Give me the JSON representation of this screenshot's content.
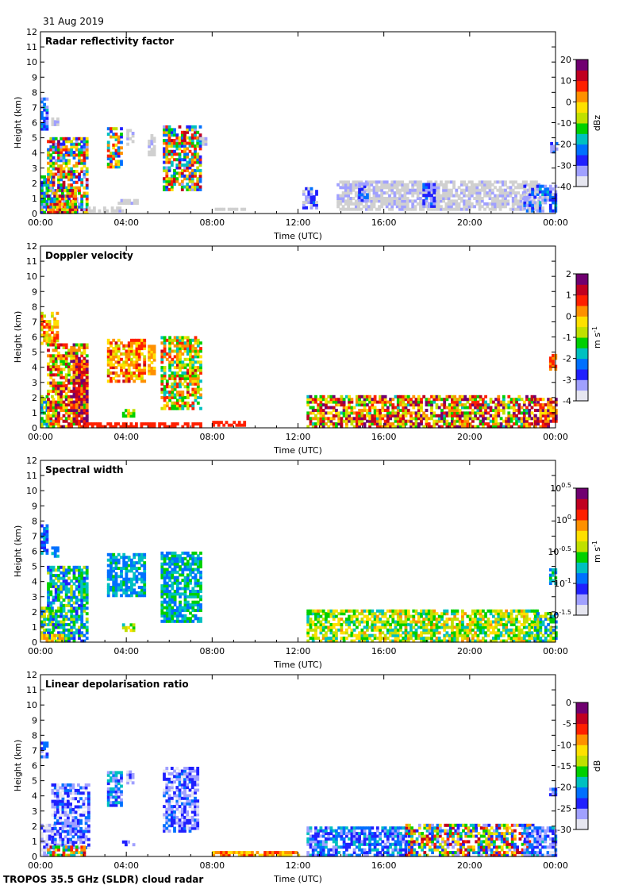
{
  "header": {
    "date": "31 Aug 2019"
  },
  "footer": {
    "instrument": "TROPOS 35.5 GHz (SLDR) cloud radar"
  },
  "colors": {
    "colormap": [
      "#e6e6f0",
      "#a0a0ff",
      "#2020ff",
      "#0070ff",
      "#00c0c0",
      "#00d000",
      "#c0e000",
      "#ffe000",
      "#ff9000",
      "#ff2000",
      "#c00020",
      "#700070"
    ],
    "gray_echo": "#d0d0d0",
    "axis": "#000000"
  },
  "chart_data": [
    {
      "type": "heatmap",
      "title": "Radar reflectivity factor",
      "xlabel": "Time (UTC)",
      "ylabel": "Height (km)",
      "x_ticks": [
        "00:00",
        "04:00",
        "08:00",
        "12:00",
        "16:00",
        "20:00",
        "00:00"
      ],
      "y_ticks": [
        "0",
        "1",
        "2",
        "3",
        "4",
        "5",
        "6",
        "7",
        "8",
        "9",
        "10",
        "11",
        "12"
      ],
      "ylim": [
        0,
        12
      ],
      "xlim_hours": [
        0,
        24
      ],
      "colorbar": {
        "label": "dBz",
        "ticks": [
          "20",
          "10",
          "0",
          "-10",
          "-20",
          "-30",
          "-40"
        ]
      },
      "regions": [
        {
          "t": [
            0.0,
            0.3
          ],
          "h": [
            5.5,
            7.6
          ],
          "c": [
            0.1,
            0.35
          ]
        },
        {
          "t": [
            0.5,
            0.8
          ],
          "h": [
            5.8,
            6.3
          ],
          "c": [
            0.0,
            0.15
          ]
        },
        {
          "t": [
            0.0,
            0.5
          ],
          "h": [
            0.0,
            2.5
          ],
          "c": [
            0.15,
            0.55
          ]
        },
        {
          "t": [
            0.3,
            2.2
          ],
          "h": [
            0.0,
            5.0
          ],
          "c": [
            0.1,
            0.95
          ]
        },
        {
          "t": [
            0.6,
            1.6
          ],
          "h": [
            0.0,
            1.5
          ],
          "c": [
            0.4,
            1.0
          ]
        },
        {
          "t": [
            3.1,
            3.8
          ],
          "h": [
            3.0,
            5.6
          ],
          "c": [
            0.2,
            0.85
          ]
        },
        {
          "t": [
            4.0,
            4.3
          ],
          "h": [
            4.5,
            5.5
          ],
          "c": [
            0.0,
            0.12
          ]
        },
        {
          "t": [
            5.0,
            5.3
          ],
          "h": [
            3.8,
            5.2
          ],
          "c": [
            0.0,
            0.1
          ]
        },
        {
          "t": [
            5.7,
            7.4
          ],
          "h": [
            1.5,
            5.8
          ],
          "c": [
            0.15,
            0.9
          ]
        },
        {
          "t": [
            7.4,
            7.7
          ],
          "h": [
            4.5,
            5.0
          ],
          "c": [
            0.0,
            0.12
          ]
        },
        {
          "t": [
            3.6,
            4.5
          ],
          "h": [
            0.6,
            0.9
          ],
          "c": [
            0.0,
            0.12
          ]
        },
        {
          "t": [
            2.2,
            3.8
          ],
          "h": [
            0.1,
            0.3
          ],
          "c": [
            0.0,
            0.1
          ]
        },
        {
          "t": [
            8.0,
            9.5
          ],
          "h": [
            0.2,
            0.35
          ],
          "c": [
            0.0,
            0.08
          ]
        },
        {
          "t": [
            12.2,
            12.8
          ],
          "h": [
            0.3,
            1.6
          ],
          "c": [
            0.0,
            0.3
          ]
        },
        {
          "t": [
            13.8,
            23.2
          ],
          "h": [
            0.2,
            2.1
          ],
          "c": [
            0.0,
            0.12
          ]
        },
        {
          "t": [
            14.8,
            15.2
          ],
          "h": [
            0.8,
            1.9
          ],
          "c": [
            0.1,
            0.3
          ]
        },
        {
          "t": [
            17.8,
            18.3
          ],
          "h": [
            0.4,
            2.0
          ],
          "c": [
            0.1,
            0.3
          ]
        },
        {
          "t": [
            22.5,
            24.0
          ],
          "h": [
            0.1,
            1.8
          ],
          "c": [
            0.05,
            0.35
          ]
        },
        {
          "t": [
            23.75,
            24.0
          ],
          "h": [
            4.0,
            4.6
          ],
          "c": [
            0.1,
            0.3
          ]
        }
      ]
    },
    {
      "type": "heatmap",
      "title": "Doppler velocity",
      "xlabel": "Time (UTC)",
      "ylabel": "Height (km)",
      "x_ticks": [
        "00:00",
        "04:00",
        "08:00",
        "12:00",
        "16:00",
        "20:00",
        "00:00"
      ],
      "y_ticks": [
        "0",
        "1",
        "2",
        "3",
        "4",
        "5",
        "6",
        "7",
        "8",
        "9",
        "10",
        "11",
        "12"
      ],
      "ylim": [
        0,
        12
      ],
      "xlim_hours": [
        0,
        24
      ],
      "colorbar": {
        "label": "m s-1",
        "ticks": [
          "2",
          "1",
          "0",
          "-1",
          "-2",
          "-3",
          "-4"
        ]
      },
      "regions": [
        {
          "t": [
            0.0,
            0.8
          ],
          "h": [
            5.5,
            7.5
          ],
          "c": [
            0.55,
            0.8
          ]
        },
        {
          "t": [
            0.0,
            0.5
          ],
          "h": [
            0.0,
            2.0
          ],
          "c": [
            0.3,
            0.6
          ]
        },
        {
          "t": [
            0.3,
            2.2
          ],
          "h": [
            0.0,
            5.5
          ],
          "c": [
            0.45,
            0.95
          ]
        },
        {
          "t": [
            1.5,
            2.2
          ],
          "h": [
            0.0,
            4.5
          ],
          "c": [
            0.7,
            1.0
          ]
        },
        {
          "t": [
            3.1,
            4.8
          ],
          "h": [
            3.0,
            5.8
          ],
          "c": [
            0.55,
            0.85
          ]
        },
        {
          "t": [
            5.0,
            5.3
          ],
          "h": [
            3.5,
            5.3
          ],
          "c": [
            0.6,
            0.75
          ]
        },
        {
          "t": [
            5.6,
            7.5
          ],
          "h": [
            1.2,
            5.9
          ],
          "c": [
            0.35,
            0.85
          ]
        },
        {
          "t": [
            3.8,
            4.3
          ],
          "h": [
            0.7,
            1.1
          ],
          "c": [
            0.4,
            0.7
          ]
        },
        {
          "t": [
            2.0,
            7.5
          ],
          "h": [
            0.0,
            0.3
          ],
          "c": [
            0.75,
            0.82
          ]
        },
        {
          "t": [
            8.0,
            9.5
          ],
          "h": [
            0.1,
            0.3
          ],
          "c": [
            0.75,
            0.82
          ]
        },
        {
          "t": [
            12.4,
            23.0
          ],
          "h": [
            0.0,
            2.1
          ],
          "c": [
            0.4,
            1.0
          ]
        },
        {
          "t": [
            23.0,
            24.0
          ],
          "h": [
            0.0,
            1.9
          ],
          "c": [
            0.6,
            1.0
          ]
        },
        {
          "t": [
            23.7,
            24.0
          ],
          "h": [
            3.8,
            4.8
          ],
          "c": [
            0.7,
            0.8
          ]
        }
      ]
    },
    {
      "type": "heatmap",
      "title": "Spectral width",
      "xlabel": "Time (UTC)",
      "ylabel": "Height (km)",
      "x_ticks": [
        "00:00",
        "04:00",
        "08:00",
        "12:00",
        "16:00",
        "20:00",
        "00:00"
      ],
      "y_ticks": [
        "0",
        "1",
        "2",
        "3",
        "4",
        "5",
        "6",
        "7",
        "8",
        "9",
        "10",
        "11",
        "12"
      ],
      "ylim": [
        0,
        12
      ],
      "xlim_hours": [
        0,
        24
      ],
      "colorbar": {
        "label": "m s-1",
        "ticks": [
          "10^0.5",
          "10^0",
          "10^-0.5",
          "10^-1",
          "10^-1.5"
        ]
      },
      "regions": [
        {
          "t": [
            0.0,
            0.3
          ],
          "h": [
            5.8,
            7.6
          ],
          "c": [
            0.2,
            0.35
          ]
        },
        {
          "t": [
            0.5,
            0.8
          ],
          "h": [
            5.6,
            6.3
          ],
          "c": [
            0.25,
            0.35
          ]
        },
        {
          "t": [
            0.0,
            0.5
          ],
          "h": [
            0.0,
            2.2
          ],
          "c": [
            0.25,
            0.6
          ]
        },
        {
          "t": [
            0.3,
            2.2
          ],
          "h": [
            0.0,
            5.0
          ],
          "c": [
            0.2,
            0.55
          ]
        },
        {
          "t": [
            0.0,
            1.0
          ],
          "h": [
            0.0,
            0.4
          ],
          "c": [
            0.55,
            0.75
          ]
        },
        {
          "t": [
            3.1,
            4.8
          ],
          "h": [
            3.0,
            5.8
          ],
          "c": [
            0.25,
            0.45
          ]
        },
        {
          "t": [
            5.6,
            7.5
          ],
          "h": [
            1.3,
            5.9
          ],
          "c": [
            0.25,
            0.5
          ]
        },
        {
          "t": [
            3.8,
            4.3
          ],
          "h": [
            0.7,
            1.1
          ],
          "c": [
            0.4,
            0.6
          ]
        },
        {
          "t": [
            12.4,
            23.2
          ],
          "h": [
            0.0,
            2.1
          ],
          "c": [
            0.35,
            0.7
          ]
        },
        {
          "t": [
            23.0,
            24.0
          ],
          "h": [
            0.0,
            1.9
          ],
          "c": [
            0.25,
            0.6
          ]
        },
        {
          "t": [
            23.7,
            24.0
          ],
          "h": [
            3.8,
            4.8
          ],
          "c": [
            0.3,
            0.45
          ]
        }
      ]
    },
    {
      "type": "heatmap",
      "title": "Linear depolarisation ratio",
      "xlabel": "Time (UTC)",
      "ylabel": "Height (km)",
      "x_ticks": [
        "00:00",
        "04:00",
        "08:00",
        "12:00",
        "16:00",
        "20:00",
        "00:00"
      ],
      "y_ticks": [
        "0",
        "1",
        "2",
        "3",
        "4",
        "5",
        "6",
        "7",
        "8",
        "9",
        "10",
        "11",
        "12"
      ],
      "ylim": [
        0,
        12
      ],
      "xlim_hours": [
        0,
        24
      ],
      "colorbar": {
        "label": "dB",
        "ticks": [
          "0",
          "-5",
          "-10",
          "-15",
          "-20",
          "-25",
          "-30"
        ]
      },
      "regions": [
        {
          "t": [
            0.0,
            0.3
          ],
          "h": [
            6.5,
            7.5
          ],
          "c": [
            0.15,
            0.35
          ]
        },
        {
          "t": [
            0.0,
            0.7
          ],
          "h": [
            0.0,
            2.0
          ],
          "c": [
            0.0,
            0.2
          ]
        },
        {
          "t": [
            0.5,
            2.2
          ],
          "h": [
            0.5,
            4.8
          ],
          "c": [
            0.05,
            0.3
          ]
        },
        {
          "t": [
            0.3,
            2.0
          ],
          "h": [
            0.0,
            0.6
          ],
          "c": [
            0.3,
            0.85
          ]
        },
        {
          "t": [
            3.1,
            3.8
          ],
          "h": [
            3.3,
            5.6
          ],
          "c": [
            0.1,
            0.4
          ]
        },
        {
          "t": [
            4.0,
            4.3
          ],
          "h": [
            4.6,
            5.5
          ],
          "c": [
            0.05,
            0.2
          ]
        },
        {
          "t": [
            5.7,
            7.3
          ],
          "h": [
            1.6,
            5.8
          ],
          "c": [
            0.05,
            0.3
          ]
        },
        {
          "t": [
            3.8,
            4.3
          ],
          "h": [
            0.7,
            1.0
          ],
          "c": [
            0.1,
            0.3
          ]
        },
        {
          "t": [
            8.0,
            12.0
          ],
          "h": [
            0.0,
            0.3
          ],
          "c": [
            0.6,
            0.8
          ]
        },
        {
          "t": [
            12.4,
            17.0
          ],
          "h": [
            0.0,
            1.9
          ],
          "c": [
            0.1,
            0.4
          ]
        },
        {
          "t": [
            17.0,
            23.0
          ],
          "h": [
            0.0,
            2.1
          ],
          "c": [
            0.1,
            0.9
          ]
        },
        {
          "t": [
            22.5,
            24.0
          ],
          "h": [
            0.0,
            1.8
          ],
          "c": [
            0.05,
            0.35
          ]
        },
        {
          "t": [
            23.7,
            24.0
          ],
          "h": [
            4.0,
            4.5
          ],
          "c": [
            0.1,
            0.3
          ]
        }
      ]
    }
  ]
}
